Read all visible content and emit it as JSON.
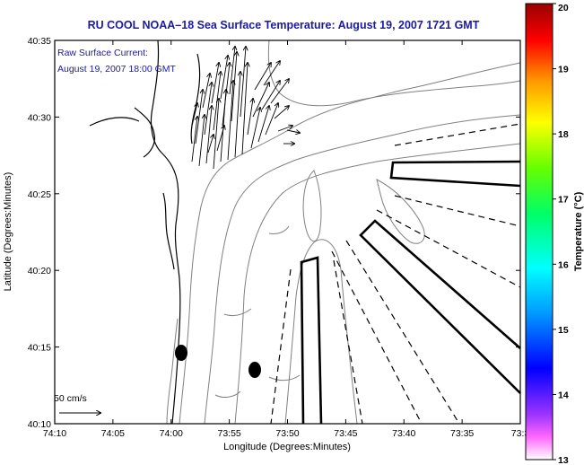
{
  "title": "RU COOL  NOAA–18  Sea Surface Temperature:  August 19, 2007 1721 GMT",
  "annotation": {
    "line1": "Raw Surface Current:",
    "line2": "August 19, 2007 18:00 GMT"
  },
  "scale_label": "50 cm/s",
  "axes": {
    "xlabel": "Longitude (Degrees:Minutes)",
    "ylabel": "Latitude (Degrees:Minutes)",
    "xticks": [
      "74:10",
      "74:05",
      "74:00",
      "73:55",
      "73:50",
      "73:45",
      "73:40",
      "73:35",
      "73:3"
    ],
    "yticks": [
      "40:35",
      "40:30",
      "40:25",
      "40:20",
      "40:15",
      "40:10"
    ]
  },
  "colorbar": {
    "label": "Temperature (°C)",
    "ticks": [
      "20",
      "19",
      "18",
      "17",
      "16",
      "15",
      "14",
      "13"
    ],
    "range": [
      13,
      20
    ]
  },
  "colors": {
    "title": "#1a1aa6",
    "frame": "#000000",
    "contour": "#808080"
  }
}
